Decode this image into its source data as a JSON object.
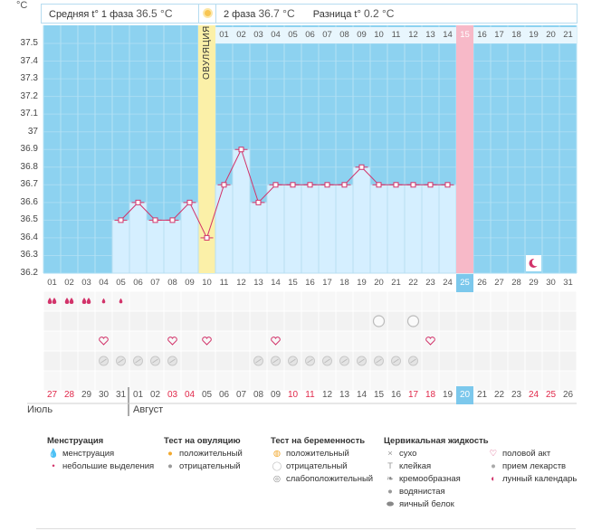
{
  "header": {
    "phase1_label": "Средняя t° 1 фаза",
    "phase1_value": "36.5 °С",
    "phase2_label": "2 фаза",
    "phase2_value": "36.7 °С",
    "diff_label": "Разница t°",
    "diff_value": "0.2 °С",
    "unit": "°С"
  },
  "chart_data": {
    "type": "line",
    "title": "",
    "ylabel": "°С",
    "ylim": [
      36.2,
      37.5
    ],
    "yticks": [
      "37.5",
      "37.4",
      "37.3",
      "37.2",
      "37.1",
      "37",
      "36.9",
      "36.8",
      "36.7",
      "36.6",
      "36.5",
      "36.4",
      "36.3",
      "36.2"
    ],
    "cycle_days": [
      "01",
      "02",
      "03",
      "04",
      "05",
      "06",
      "07",
      "08",
      "09",
      "10",
      "11",
      "12",
      "13",
      "14",
      "15",
      "16",
      "17",
      "18",
      "19",
      "20",
      "21",
      "22",
      "23",
      "24",
      "25",
      "26",
      "27",
      "28",
      "29",
      "30",
      "31"
    ],
    "temperatures": [
      null,
      null,
      null,
      null,
      36.5,
      36.6,
      36.5,
      36.5,
      36.6,
      36.4,
      36.7,
      36.9,
      36.6,
      36.7,
      36.7,
      36.7,
      36.7,
      36.7,
      36.8,
      36.7,
      36.7,
      36.7,
      36.7,
      36.7,
      null,
      null,
      null,
      null,
      null,
      null,
      null
    ],
    "ovulation_day_index": 9,
    "ovulation_label": "ОВУЛЯЦИЯ",
    "post_ovulation_labels": [
      "01",
      "02",
      "03",
      "04",
      "05",
      "06",
      "07",
      "08",
      "09",
      "10",
      "11",
      "12",
      "13",
      "14",
      "15",
      "16",
      "17",
      "18",
      "19",
      "20",
      "21"
    ],
    "highlight_top_index": 14,
    "today_index": 24,
    "calendar_dates": [
      "27",
      "28",
      "29",
      "30",
      "31",
      "01",
      "02",
      "03",
      "04",
      "05",
      "06",
      "07",
      "08",
      "09",
      "10",
      "11",
      "12",
      "13",
      "14",
      "15",
      "16",
      "17",
      "18",
      "19",
      "20",
      "21",
      "22",
      "23",
      "24",
      "25",
      "26"
    ],
    "weekend_indices": [
      0,
      1,
      7,
      8,
      14,
      15,
      21,
      22,
      28,
      29
    ],
    "month_labels": [
      "Июль",
      "Август"
    ],
    "menstruation": [
      2,
      3,
      3,
      1,
      1,
      0,
      0,
      0,
      0,
      0,
      0,
      0,
      0,
      0,
      0,
      0,
      0,
      0,
      0,
      0,
      0,
      0,
      0,
      0,
      0,
      0,
      0,
      0,
      0,
      0,
      0
    ],
    "pregnancy_test_days": [
      19,
      21
    ],
    "intercourse_days": [
      3,
      7,
      9,
      13,
      22
    ],
    "medication_days": [
      3,
      4,
      5,
      6,
      7,
      12,
      13,
      14,
      15,
      16,
      17,
      18,
      19,
      20,
      21
    ],
    "lunar_day": 28
  },
  "legend": {
    "menstruation": {
      "title": "Менструация",
      "items": [
        "менструация",
        "небольшие выделения"
      ]
    },
    "ovulation_test": {
      "title": "Тест на овуляцию",
      "items": [
        "положительный",
        "отрицательный"
      ]
    },
    "pregnancy_test": {
      "title": "Тест на беременность",
      "items": [
        "положительный",
        "отрицательный",
        "слабоположительный"
      ]
    },
    "cervical": {
      "title": "Цервикальная жидкость",
      "items": [
        "сухо",
        "клейкая",
        "кремообразная",
        "водянистая",
        "яичный белок"
      ]
    },
    "other": {
      "items": [
        "половой акт",
        "прием лекарств",
        "лунный календарь"
      ]
    }
  },
  "colors": {
    "sky": "#8dd2f0",
    "bar": "#d5efff",
    "ovulation": "#fbf0a8",
    "highlight": "#f7b9c8",
    "line": "#d2336a",
    "today": "#7cc8ec"
  }
}
